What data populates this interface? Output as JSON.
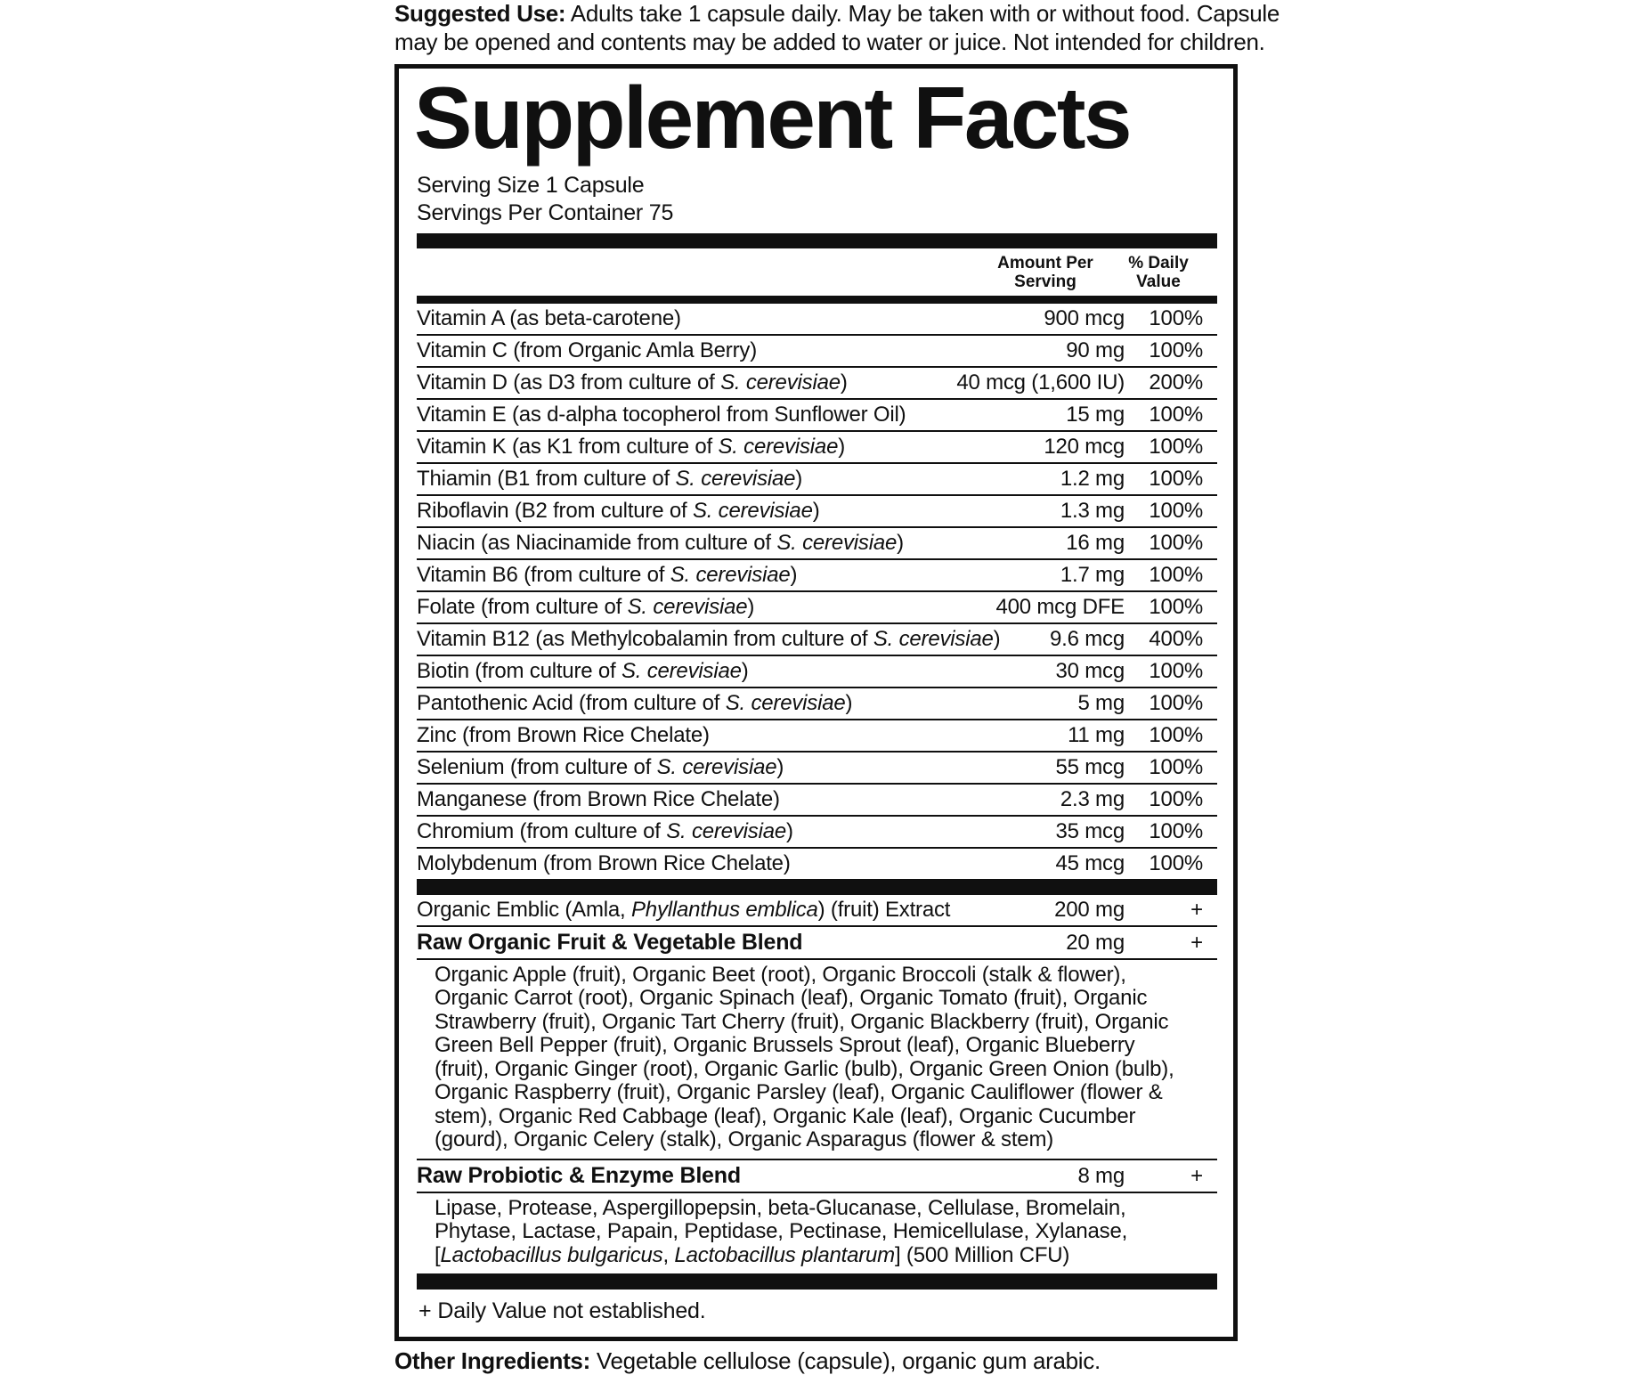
{
  "colors": {
    "ink": "#101010",
    "paper": "#ffffff"
  },
  "suggested_use": {
    "label": "Suggested Use:",
    "text": "Adults take 1 capsule daily. May be taken with or without food. Capsule may be opened and contents may be added to water or juice. Not intended for children."
  },
  "panel": {
    "title": "Supplement Facts",
    "serving_size": "Serving Size 1 Capsule",
    "servings_per_container": "Servings Per Container 75",
    "columns": {
      "amount": "Amount Per Serving",
      "daily_value": "% Daily Value"
    },
    "nutrients": [
      {
        "name": [
          {
            "t": "Vitamin A (as beta-carotene)"
          }
        ],
        "amount": "900 mcg",
        "dv": "100%"
      },
      {
        "name": [
          {
            "t": "Vitamin C (from Organic Amla Berry)"
          }
        ],
        "amount": "90 mg",
        "dv": "100%"
      },
      {
        "name": [
          {
            "t": "Vitamin D (as D3 from culture of "
          },
          {
            "t": "S. cerevisiae",
            "i": true
          },
          {
            "t": ")"
          }
        ],
        "amount": "40 mcg (1,600 IU)",
        "dv": "200%"
      },
      {
        "name": [
          {
            "t": "Vitamin E (as d-alpha tocopherol from Sunflower Oil)"
          }
        ],
        "amount": "15 mg",
        "dv": "100%"
      },
      {
        "name": [
          {
            "t": "Vitamin K (as K1 from culture of "
          },
          {
            "t": "S. cerevisiae",
            "i": true
          },
          {
            "t": ")"
          }
        ],
        "amount": "120 mcg",
        "dv": "100%"
      },
      {
        "name": [
          {
            "t": "Thiamin (B1 from culture of "
          },
          {
            "t": "S. cerevisiae",
            "i": true
          },
          {
            "t": ")"
          }
        ],
        "amount": "1.2 mg",
        "dv": "100%"
      },
      {
        "name": [
          {
            "t": "Riboflavin (B2 from culture of "
          },
          {
            "t": "S. cerevisiae",
            "i": true
          },
          {
            "t": ")"
          }
        ],
        "amount": "1.3 mg",
        "dv": "100%"
      },
      {
        "name": [
          {
            "t": "Niacin (as Niacinamide from culture of "
          },
          {
            "t": "S. cerevisiae",
            "i": true
          },
          {
            "t": ")"
          }
        ],
        "amount": "16 mg",
        "dv": "100%"
      },
      {
        "name": [
          {
            "t": "Vitamin B6 (from culture of "
          },
          {
            "t": "S. cerevisiae",
            "i": true
          },
          {
            "t": ")"
          }
        ],
        "amount": "1.7 mg",
        "dv": "100%"
      },
      {
        "name": [
          {
            "t": "Folate (from culture of "
          },
          {
            "t": "S. cerevisiae",
            "i": true
          },
          {
            "t": ")"
          }
        ],
        "amount": "400 mcg DFE",
        "dv": "100%"
      },
      {
        "name": [
          {
            "t": "Vitamin B12 (as Methylcobalamin from culture of "
          },
          {
            "t": "S. cerevisiae",
            "i": true
          },
          {
            "t": ")"
          }
        ],
        "amount": "9.6 mcg",
        "dv": "400%"
      },
      {
        "name": [
          {
            "t": "Biotin (from culture of "
          },
          {
            "t": "S. cerevisiae",
            "i": true
          },
          {
            "t": ")"
          }
        ],
        "amount": "30 mcg",
        "dv": "100%"
      },
      {
        "name": [
          {
            "t": "Pantothenic Acid (from culture of "
          },
          {
            "t": "S. cerevisiae",
            "i": true
          },
          {
            "t": ")"
          }
        ],
        "amount": "5 mg",
        "dv": "100%"
      },
      {
        "name": [
          {
            "t": "Zinc (from Brown Rice Chelate)"
          }
        ],
        "amount": "11 mg",
        "dv": "100%"
      },
      {
        "name": [
          {
            "t": "Selenium (from culture of "
          },
          {
            "t": "S. cerevisiae",
            "i": true
          },
          {
            "t": ")"
          }
        ],
        "amount": "55 mcg",
        "dv": "100%"
      },
      {
        "name": [
          {
            "t": "Manganese (from Brown Rice Chelate)"
          }
        ],
        "amount": "2.3 mg",
        "dv": "100%"
      },
      {
        "name": [
          {
            "t": "Chromium (from culture of "
          },
          {
            "t": "S. cerevisiae",
            "i": true
          },
          {
            "t": ")"
          }
        ],
        "amount": "35 mcg",
        "dv": "100%"
      },
      {
        "name": [
          {
            "t": "Molybdenum (from Brown Rice Chelate)"
          }
        ],
        "amount": "45 mcg",
        "dv": "100%"
      }
    ],
    "extract_row": {
      "name": [
        {
          "t": "Organic Emblic (Amla, "
        },
        {
          "t": "Phyllanthus emblica",
          "i": true
        },
        {
          "t": ") (fruit) Extract"
        }
      ],
      "amount": "200 mg",
      "dv": "+"
    },
    "blends": [
      {
        "name": [
          {
            "t": "Raw Organic Fruit & Vegetable Blend"
          }
        ],
        "amount": "20 mg",
        "dv": "+",
        "description": [
          {
            "t": "Organic Apple (fruit), Organic Beet (root), Organic Broccoli (stalk & flower), Organic Carrot (root), Organic Spinach (leaf), Organic Tomato (fruit), Organic Strawberry (fruit), Organic Tart Cherry (fruit), Organic Blackberry (fruit), Organic Green Bell Pepper (fruit), Organic Brussels Sprout (leaf), Organic Blueberry (fruit), Organic Ginger (root), Organic Garlic (bulb), Organic Green Onion (bulb), Organic Raspberry (fruit), Organic Parsley (leaf), Organic Cauliflower (flower & stem), Organic Red Cabbage (leaf), Organic Kale (leaf), Organic Cucumber (gourd), Organic Celery (stalk), Organic Asparagus (flower & stem)"
          }
        ]
      },
      {
        "name": [
          {
            "t": "Raw Probiotic & Enzyme Blend"
          }
        ],
        "amount": "8 mg",
        "dv": "+",
        "description": [
          {
            "t": "Lipase, Protease, Aspergillopepsin, beta-Glucanase, Cellulase, Bromelain, Phytase, Lactase, Papain, Peptidase, Pectinase, Hemicellulase, Xylanase, ["
          },
          {
            "t": "Lactobacillus bulgaricus",
            "i": true
          },
          {
            "t": ", "
          },
          {
            "t": "Lactobacillus plantarum",
            "i": true
          },
          {
            "t": "] (500 Million CFU)"
          }
        ]
      }
    ],
    "footnote": {
      "symbol": "+",
      "text": "Daily Value not established."
    }
  },
  "other_ingredients": {
    "label": "Other Ingredients:",
    "text": "Vegetable cellulose (capsule), organic gum arabic."
  }
}
